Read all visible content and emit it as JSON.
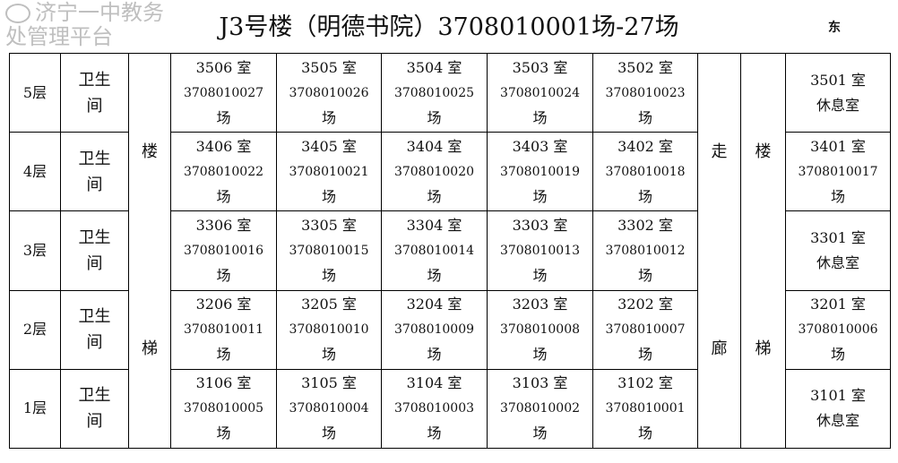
{
  "title": "J3号楼（明德书院）3708010001场-27场",
  "direction": "东",
  "restroom": [
    "卫生",
    "间"
  ],
  "stairs_left": [
    "楼",
    "梯"
  ],
  "corridor": [
    "走",
    "廊"
  ],
  "stairs_right": [
    "楼",
    "梯"
  ],
  "floors": [
    {
      "label": "5层",
      "rooms": [
        {
          "room": "3506 室",
          "code": "3708010027",
          "suffix": "场"
        },
        {
          "room": "3505 室",
          "code": "3708010026",
          "suffix": "场"
        },
        {
          "room": "3504 室",
          "code": "3708010025",
          "suffix": "场"
        },
        {
          "room": "3503 室",
          "code": "3708010024",
          "suffix": "场"
        },
        {
          "room": "3502 室",
          "code": "3708010023",
          "suffix": "场"
        }
      ],
      "east": {
        "room": "3501 室",
        "line2": "休息室",
        "line3": ""
      }
    },
    {
      "label": "4层",
      "rooms": [
        {
          "room": "3406 室",
          "code": "3708010022",
          "suffix": "场"
        },
        {
          "room": "3405 室",
          "code": "3708010021",
          "suffix": "场"
        },
        {
          "room": "3404 室",
          "code": "3708010020",
          "suffix": "场"
        },
        {
          "room": "3403 室",
          "code": "3708010019",
          "suffix": "场"
        },
        {
          "room": "3402 室",
          "code": "3708010018",
          "suffix": "场"
        }
      ],
      "east": {
        "room": "3401 室",
        "line2": "3708010017",
        "line3": "场"
      }
    },
    {
      "label": "3层",
      "rooms": [
        {
          "room": "3306 室",
          "code": "3708010016",
          "suffix": "场"
        },
        {
          "room": "3305 室",
          "code": "3708010015",
          "suffix": "场"
        },
        {
          "room": "3304 室",
          "code": "3708010014",
          "suffix": "场"
        },
        {
          "room": "3303 室",
          "code": "3708010013",
          "suffix": "场"
        },
        {
          "room": "3302 室",
          "code": "3708010012",
          "suffix": "场"
        }
      ],
      "east": {
        "room": "3301 室",
        "line2": "休息室",
        "line3": ""
      }
    },
    {
      "label": "2层",
      "rooms": [
        {
          "room": "3206 室",
          "code": "3708010011",
          "suffix": "场"
        },
        {
          "room": "3205 室",
          "code": "3708010010",
          "suffix": "场"
        },
        {
          "room": "3204 室",
          "code": "3708010009",
          "suffix": "场"
        },
        {
          "room": "3203 室",
          "code": "3708010008",
          "suffix": "场"
        },
        {
          "room": "3202 室",
          "code": "3708010007",
          "suffix": "场"
        }
      ],
      "east": {
        "room": "3201 室",
        "line2": "3708010006",
        "line3": "场"
      }
    },
    {
      "label": "1层",
      "rooms": [
        {
          "room": "3106 室",
          "code": "3708010005",
          "suffix": "场"
        },
        {
          "room": "3105 室",
          "code": "3708010004",
          "suffix": "场"
        },
        {
          "room": "3104 室",
          "code": "3708010003",
          "suffix": "场"
        },
        {
          "room": "3103 室",
          "code": "3708010002",
          "suffix": "场"
        },
        {
          "room": "3102 室",
          "code": "3708010001",
          "suffix": "场"
        }
      ],
      "east": {
        "room": "3101 室",
        "line2": "休息室",
        "line3": ""
      }
    }
  ],
  "watermark": "济宁一中教务处管理平台"
}
